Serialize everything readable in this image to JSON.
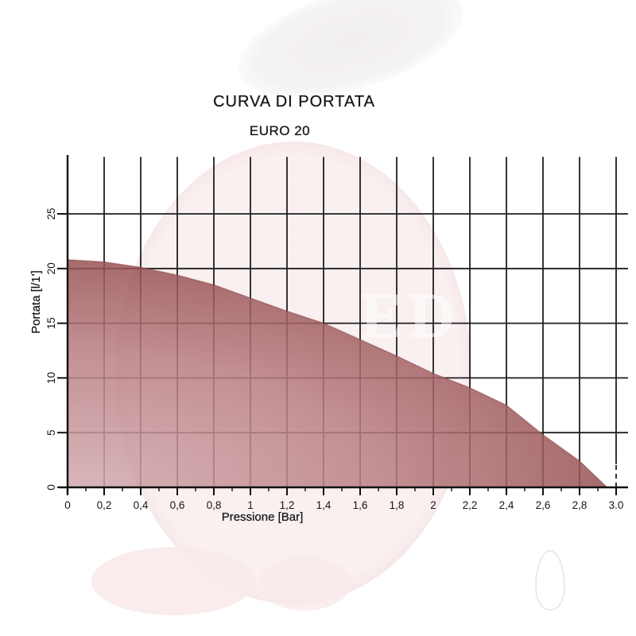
{
  "header": {
    "title": "CURVA DI PORTATA",
    "subtitle": "EURO 20"
  },
  "watermark": {
    "letters": "ED"
  },
  "chart_data": {
    "type": "area",
    "title": "CURVA DI PORTATA",
    "subtitle": "EURO 20",
    "xlabel": "Pressione [Bar]",
    "ylabel": "Portata [l/1']",
    "xlim": [
      0,
      3.0
    ],
    "ylim": [
      0,
      30
    ],
    "grid": true,
    "legend": "none",
    "x_tick_step": 0.2,
    "x_minor_tick_step": 0.1,
    "x_ticks": [
      0,
      0.2,
      0.4,
      0.6,
      0.8,
      1.0,
      1.2,
      1.4,
      1.6,
      1.8,
      2.0,
      2.2,
      2.4,
      2.6,
      2.8,
      3.0
    ],
    "x_tick_labels": [
      "0",
      "0,2",
      "0,4",
      "0,6",
      "0,8",
      "1",
      "1,2",
      "1,4",
      "1,6",
      "1,8",
      "2",
      "2,2",
      "2,4",
      "2,6",
      "2,8",
      "3.0"
    ],
    "y_ticks": [
      0,
      5,
      10,
      15,
      20,
      25
    ],
    "y_tick_labels": [
      "0",
      "5",
      "10",
      "15",
      "20",
      "25"
    ],
    "series": [
      {
        "name": "EURO 20",
        "points": [
          [
            0,
            20.8
          ],
          [
            0.2,
            20.6
          ],
          [
            0.4,
            20.1
          ],
          [
            0.6,
            19.4
          ],
          [
            0.8,
            18.5
          ],
          [
            1.0,
            17.3
          ],
          [
            1.2,
            16.1
          ],
          [
            1.4,
            15.0
          ],
          [
            1.6,
            13.5
          ],
          [
            1.8,
            12.0
          ],
          [
            2.0,
            10.4
          ],
          [
            2.2,
            9.1
          ],
          [
            2.4,
            7.5
          ],
          [
            2.6,
            4.8
          ],
          [
            2.8,
            2.4
          ],
          [
            2.95,
            0
          ]
        ]
      }
    ],
    "colors": {
      "grid": "#1f1f1f",
      "axis": "#111111",
      "text": "#161616",
      "edge": "#8e4a4c",
      "fill_stops": [
        {
          "offset": 0,
          "color": "#d2a9ae"
        },
        {
          "offset": 0.45,
          "color": "#b97f83"
        },
        {
          "offset": 0.8,
          "color": "#954e50"
        },
        {
          "offset": 1,
          "color": "#8c4345"
        }
      ]
    }
  }
}
